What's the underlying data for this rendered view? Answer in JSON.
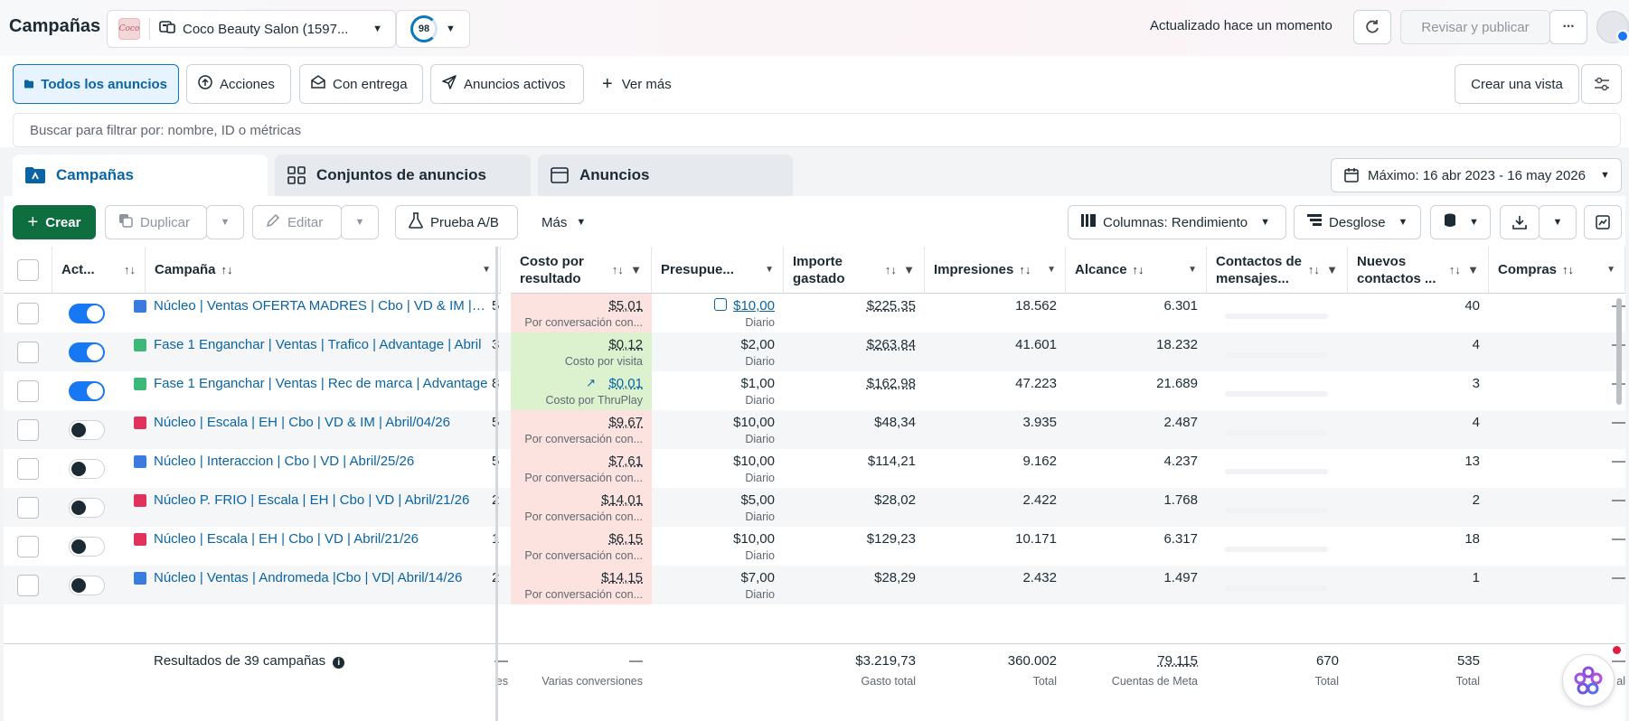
{
  "header": {
    "title": "Campañas",
    "account_name": "Coco Beauty Salon (1597...",
    "account_logo_text": "Coco",
    "score": "98",
    "updated_text": "Actualizado hace un momento",
    "review_publish_label": "Revisar y publicar",
    "more_label": "···"
  },
  "filters": {
    "items": [
      {
        "label": "Todos los anuncios"
      },
      {
        "label": "Acciones"
      },
      {
        "label": "Con entrega"
      },
      {
        "label": "Anuncios activos"
      },
      {
        "label": "Ver más"
      }
    ],
    "create_view_label": "Crear una vista"
  },
  "search": {
    "placeholder": "Buscar para filtrar por: nombre, ID o métricas"
  },
  "tabs": [
    {
      "label": "Campañas"
    },
    {
      "label": "Conjuntos de anuncios"
    },
    {
      "label": "Anuncios"
    }
  ],
  "date_range": "Máximo: 16 abr 2023 - 16 may 2026",
  "toolbar": {
    "create": "Crear",
    "duplicate": "Duplicar",
    "edit": "Editar",
    "ab_test": "Prueba A/B",
    "more": "Más",
    "columns": "Columnas: Rendimiento",
    "breakdown": "Desglose"
  },
  "table": {
    "headers": {
      "active": "Act...",
      "campaign": "Campaña",
      "cost_per_result": "Costo por resultado",
      "budget": "Presupue...",
      "amount_spent": "Importe gastado",
      "impressions": "Impresiones",
      "reach": "Alcance",
      "message_contacts": "Contactos de mensajes...",
      "new_contacts": "Nuevos contactos ...",
      "purchases": "Compras"
    },
    "rows": [
      {
        "on": true,
        "color": "#3a7be0",
        "name": "Núcleo | Ventas OFERTA MADRES | Cbo | VD & IM | Mayo",
        "edge": "5",
        "cpr": "$5,01",
        "cpr_sub": "Por conversación con...",
        "cpr_bg": "#fde3df",
        "budget": "$10,00",
        "budget_link": true,
        "budget_sub": "Diario",
        "spent": "$225,35",
        "spent_u": true,
        "impr": "18.562",
        "reach": "6.301",
        "new": "40",
        "purch": "—"
      },
      {
        "on": true,
        "color": "#3cb879",
        "name": "Fase 1 Enganchar | Ventas | Trafico | Advantage | Abril",
        "edge": "3",
        "cpr": "$0,12",
        "cpr_sub": "Costo por visita",
        "cpr_bg": "#dcf2cf",
        "budget": "$2,00",
        "budget_link": false,
        "budget_sub": "Diario",
        "spent": "$263,84",
        "spent_u": true,
        "impr": "41.601",
        "reach": "18.232",
        "new": "4",
        "purch": "—"
      },
      {
        "on": true,
        "color": "#3cb879",
        "name": "Fase 1 Enganchar | Ventas | Rec de marca | Advantage",
        "edge": "8",
        "cpr": "$0,01",
        "cpr_sub": "Costo por ThruPlay",
        "cpr_bg": "#dcf2cf",
        "budget": "$1,00",
        "budget_link": false,
        "budget_sub": "Diario",
        "spent": "$162,98",
        "spent_u": true,
        "impr": "47.223",
        "reach": "21.689",
        "new": "3",
        "purch": "—"
      },
      {
        "on": false,
        "color": "#e0325a",
        "name": "Núcleo | Escala | EH | Cbo | VD & IM | Abril/04/26",
        "edge": "5",
        "cpr": "$9,67",
        "cpr_sub": "Por conversación con...",
        "cpr_bg": "#fde3df",
        "budget": "$10,00",
        "budget_link": false,
        "budget_sub": "Diario",
        "spent": "$48,34",
        "spent_u": false,
        "impr": "3.935",
        "reach": "2.487",
        "new": "4",
        "purch": "—"
      },
      {
        "on": false,
        "color": "#3a7be0",
        "name": "Núcleo | Interaccion | Cbo | VD | Abril/25/26",
        "edge": "5",
        "cpr": "$7,61",
        "cpr_sub": "Por conversación con...",
        "cpr_bg": "#fde3df",
        "budget": "$10,00",
        "budget_link": false,
        "budget_sub": "Diario",
        "spent": "$114,21",
        "spent_u": false,
        "impr": "9.162",
        "reach": "4.237",
        "new": "13",
        "purch": "—"
      },
      {
        "on": false,
        "color": "#e0325a",
        "name": "Núcleo P. FRIO | Escala | EH | Cbo | VD | Abril/21/26",
        "edge": "2",
        "cpr": "$14,01",
        "cpr_sub": "Por conversación con...",
        "cpr_bg": "#fde3df",
        "budget": "$5,00",
        "budget_link": false,
        "budget_sub": "Diario",
        "spent": "$28,02",
        "spent_u": false,
        "impr": "2.422",
        "reach": "1.768",
        "new": "2",
        "purch": "—"
      },
      {
        "on": false,
        "color": "#e0325a",
        "name": "Núcleo | Escala | EH | Cbo | VD | Abril/21/26",
        "edge": "1",
        "cpr": "$6,15",
        "cpr_sub": "Por conversación con...",
        "cpr_bg": "#fde3df",
        "budget": "$10,00",
        "budget_link": false,
        "budget_sub": "Diario",
        "spent": "$129,23",
        "spent_u": false,
        "impr": "10.171",
        "reach": "6.317",
        "new": "18",
        "purch": "—"
      },
      {
        "on": false,
        "color": "#3a7be0",
        "name": "Núcleo | Ventas | Andromeda |Cbo | VD| Abril/14/26",
        "edge": "2",
        "cpr": "$14,15",
        "cpr_sub": "Por conversación con...",
        "cpr_bg": "#fde3df",
        "budget": "$7,00",
        "budget_link": false,
        "budget_sub": "Diario",
        "spent": "$28,29",
        "spent_u": false,
        "impr": "2.432",
        "reach": "1.497",
        "new": "1",
        "purch": "—"
      }
    ],
    "footer": {
      "results": "Resultados de 39 campañas",
      "left_dash": "—",
      "left_sub": "es",
      "cpr": "—",
      "cpr_sub": "Varias conversiones",
      "spent": "$3.219,73",
      "spent_sub": "Gasto total",
      "impr": "360.002",
      "impr_sub": "Total",
      "reach": "79.115",
      "reach_sub": "Cuentas de Meta",
      "contacts": "670",
      "contacts_sub": "Total",
      "new": "535",
      "new_sub": "Total",
      "purch": "—",
      "purch_sub": "al"
    }
  }
}
